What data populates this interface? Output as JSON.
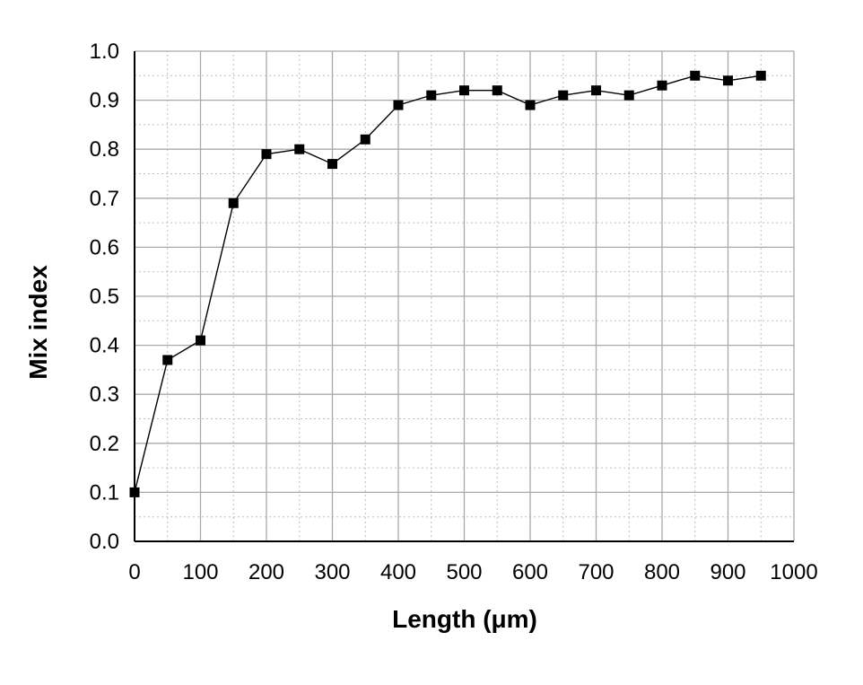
{
  "chart_data": {
    "type": "line",
    "title": "",
    "xlabel": "Length (μm)",
    "ylabel": "Mix index",
    "xlim": [
      0,
      1000
    ],
    "ylim": [
      0.0,
      1.0
    ],
    "x_ticks": [
      0,
      100,
      200,
      300,
      400,
      500,
      600,
      700,
      800,
      900,
      1000
    ],
    "y_ticks": [
      0.0,
      0.1,
      0.2,
      0.3,
      0.4,
      0.5,
      0.6,
      0.7,
      0.8,
      0.9,
      1.0
    ],
    "x_tick_labels": [
      "0",
      "100",
      "200",
      "300",
      "400",
      "500",
      "600",
      "700",
      "800",
      "900",
      "1000"
    ],
    "y_tick_labels": [
      "0.0",
      "0.1",
      "0.2",
      "0.3",
      "0.4",
      "0.5",
      "0.6",
      "0.7",
      "0.8",
      "0.9",
      "1.0"
    ],
    "grid": "major solid, minor dotted",
    "legend": "none",
    "marker": "square",
    "colors": {
      "line": "#000000",
      "marker": "#000000",
      "major_grid": "#a9a9a9",
      "minor_grid": "#bdbdbd",
      "axis": "#000000"
    },
    "series": [
      {
        "x": [
          0,
          50,
          100,
          150,
          200,
          250,
          300,
          350,
          400,
          450,
          500,
          550,
          600,
          650,
          700,
          750,
          800,
          850,
          900,
          950
        ],
        "y": [
          0.1,
          0.37,
          0.41,
          0.69,
          0.79,
          0.8,
          0.77,
          0.82,
          0.89,
          0.91,
          0.92,
          0.92,
          0.89,
          0.91,
          0.92,
          0.91,
          0.93,
          0.95,
          0.94,
          0.95
        ]
      }
    ]
  }
}
